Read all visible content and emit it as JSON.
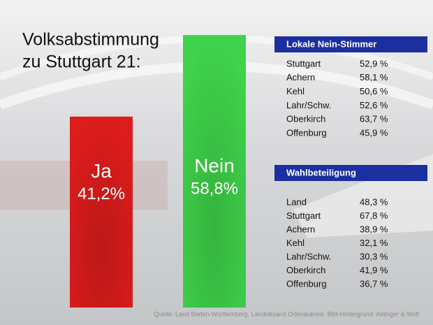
{
  "chart_data": {
    "type": "bar",
    "title": [
      "Volksabstimmung",
      "zu Stuttgart 21:"
    ],
    "categories": [
      "Ja",
      "Nein"
    ],
    "values": [
      41.2,
      58.8
    ],
    "value_labels": [
      "41,2%",
      "58,8%"
    ],
    "colors": [
      "#dd1c1c",
      "#3fd24a"
    ]
  },
  "tables": [
    {
      "title": "Lokale Nein-Stimmer",
      "rows": [
        [
          "Stuttgart",
          "52,9 %"
        ],
        [
          "Achern",
          "58,1 %"
        ],
        [
          "Kehl",
          "50,6 %"
        ],
        [
          "Lahr/Schw.",
          "52,6 %"
        ],
        [
          "Oberkirch",
          "63,7 %"
        ],
        [
          "Offenburg",
          "45,9 %"
        ]
      ]
    },
    {
      "title": "Wahlbeteiligung",
      "rows": [
        [
          "Land",
          "48,3 %"
        ],
        [
          "Stuttgart",
          "67,8 %"
        ],
        [
          "Achern",
          "38,9 %"
        ],
        [
          "Kehl",
          "32,1 %"
        ],
        [
          "Lahr/Schw.",
          "30,3 %"
        ],
        [
          "Oberkirch",
          "41,9 %"
        ],
        [
          "Offenburg",
          "36,7 %"
        ]
      ]
    }
  ],
  "source": "Quelle: Land Baden-Württemberg, Landratsamt Ortenaukreis. Bild-Hintergrund: Aldinger & Wolf"
}
